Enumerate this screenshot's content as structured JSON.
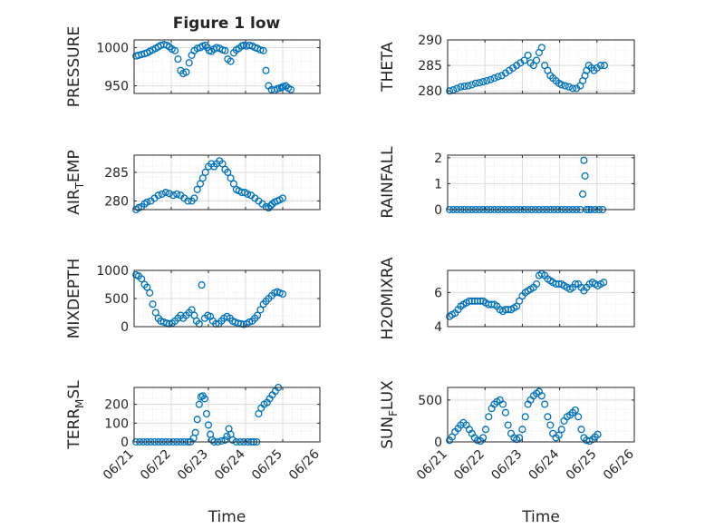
{
  "figure": {
    "title": "Figure 1 low"
  },
  "colors": {
    "marker": "#0072BD",
    "axis": "#262626",
    "grid": "#dcdcdc",
    "minorGrid": "#ebebeb",
    "background": "#ffffff"
  },
  "chart_data": [
    {
      "type": "scatter",
      "title": "Figure 1 low",
      "ylabel": "PRESSURE",
      "xlabel": "",
      "ylim": [
        940,
        1010
      ],
      "yticks": [
        950,
        1000
      ],
      "xlim": [
        0,
        5
      ],
      "xtick_labels": [],
      "grid": true,
      "legend": "none",
      "x": [
        0.05,
        0.12,
        0.2,
        0.28,
        0.35,
        0.42,
        0.5,
        0.58,
        0.65,
        0.72,
        0.8,
        0.88,
        0.95,
        1.02,
        1.1,
        1.18,
        1.25,
        1.32,
        1.4,
        1.48,
        1.55,
        1.62,
        1.7,
        1.78,
        1.85,
        1.92,
        1.97,
        2.02,
        2.08,
        2.15,
        2.22,
        2.3,
        2.38,
        2.45,
        2.52,
        2.6,
        2.68,
        2.75,
        2.82,
        2.9,
        2.95,
        3.02,
        3.1,
        3.18,
        3.25,
        3.32,
        3.4,
        3.48,
        3.55,
        3.62,
        3.7,
        3.78,
        3.85,
        3.92,
        3.97,
        4.02,
        4.08,
        4.15,
        4.22
      ],
      "y": [
        989,
        990,
        991,
        992,
        993,
        995,
        997,
        999,
        1001,
        1003,
        1004,
        1003,
        1001,
        998,
        996,
        985,
        970,
        966,
        968,
        980,
        990,
        996,
        999,
        1000,
        1002,
        1003,
        1000,
        996,
        995,
        998,
        1000,
        999,
        997,
        996,
        985,
        982,
        993,
        997,
        999,
        1002,
        1003,
        1002,
        1003,
        1002,
        1000,
        999,
        997,
        996,
        970,
        950,
        945,
        944,
        946,
        947,
        948,
        949,
        950,
        947,
        945
      ]
    },
    {
      "type": "scatter",
      "ylabel": "THETA",
      "xlabel": "",
      "ylim": [
        279.5,
        290
      ],
      "yticks": [
        280,
        285,
        290
      ],
      "xlim": [
        0,
        5
      ],
      "xtick_labels": [],
      "grid": true,
      "legend": "none",
      "x": [
        0.05,
        0.15,
        0.25,
        0.35,
        0.45,
        0.55,
        0.65,
        0.75,
        0.85,
        0.95,
        1.05,
        1.15,
        1.25,
        1.35,
        1.45,
        1.55,
        1.65,
        1.75,
        1.85,
        1.95,
        2.05,
        2.15,
        2.22,
        2.3,
        2.38,
        2.45,
        2.52,
        2.6,
        2.68,
        2.75,
        2.82,
        2.9,
        2.98,
        3.05,
        3.15,
        3.25,
        3.35,
        3.45,
        3.55,
        3.62,
        3.68,
        3.72,
        3.78,
        3.85,
        3.92,
        4.0,
        4.1,
        4.2
      ],
      "y": [
        280,
        280.2,
        280.5,
        280.8,
        280.9,
        281,
        281.2,
        281.5,
        281.6,
        281.8,
        282,
        282.2,
        282.5,
        282.8,
        283,
        283.5,
        284,
        284.5,
        285,
        285.5,
        286,
        287,
        285.5,
        285,
        286,
        287.5,
        288.5,
        285,
        284,
        283,
        282.5,
        282,
        281.5,
        281.2,
        281,
        280.8,
        280.5,
        280.5,
        281,
        282,
        283,
        284,
        285,
        284.5,
        284,
        284.5,
        285,
        285
      ]
    },
    {
      "type": "scatter",
      "ylabel": "AIR_TEMP",
      "xlabel": "",
      "ylim": [
        278.5,
        288
      ],
      "yticks": [
        280,
        285
      ],
      "xlim": [
        0,
        5
      ],
      "xtick_labels": [],
      "grid": true,
      "legend": "none",
      "x": [
        0.05,
        0.12,
        0.2,
        0.28,
        0.35,
        0.45,
        0.55,
        0.65,
        0.75,
        0.85,
        0.95,
        1.05,
        1.15,
        1.25,
        1.35,
        1.45,
        1.55,
        1.62,
        1.7,
        1.78,
        1.85,
        1.92,
        2.0,
        2.08,
        2.15,
        2.22,
        2.3,
        2.38,
        2.45,
        2.52,
        2.6,
        2.68,
        2.75,
        2.82,
        2.9,
        2.98,
        3.05,
        3.15,
        3.25,
        3.35,
        3.45,
        3.55,
        3.62,
        3.68,
        3.72,
        3.78,
        3.85,
        3.92,
        4.0
      ],
      "y": [
        278.5,
        278.8,
        279,
        279.5,
        279.8,
        280,
        280.5,
        281,
        281.2,
        281.5,
        281.3,
        281,
        281.2,
        281,
        280.5,
        280,
        280,
        280.5,
        282,
        283,
        284,
        285,
        286,
        286.5,
        286,
        286.5,
        287,
        286.5,
        285.5,
        285,
        284,
        283,
        282,
        281.8,
        281.5,
        281.5,
        281.2,
        281,
        280.5,
        280,
        279.5,
        279,
        278.8,
        279.2,
        279.5,
        279.8,
        280,
        280.2,
        280.5
      ]
    },
    {
      "type": "scatter",
      "ylabel": "RAINFALL",
      "xlabel": "",
      "ylim": [
        0,
        2.1
      ],
      "yticks": [
        0,
        1,
        2
      ],
      "xlim": [
        0,
        5
      ],
      "xtick_labels": [],
      "grid": true,
      "legend": "none",
      "x": [
        0.05,
        0.15,
        0.25,
        0.35,
        0.45,
        0.55,
        0.65,
        0.75,
        0.85,
        0.95,
        1.05,
        1.15,
        1.25,
        1.35,
        1.45,
        1.55,
        1.65,
        1.75,
        1.85,
        1.95,
        2.05,
        2.15,
        2.25,
        2.35,
        2.45,
        2.55,
        2.65,
        2.75,
        2.85,
        2.95,
        3.05,
        3.15,
        3.25,
        3.35,
        3.45,
        3.55,
        3.62,
        3.65,
        3.68,
        3.72,
        3.78,
        3.85,
        3.95,
        4.05,
        4.15
      ],
      "y": [
        0,
        0,
        0,
        0,
        0,
        0,
        0,
        0,
        0,
        0,
        0,
        0,
        0,
        0,
        0,
        0,
        0,
        0,
        0,
        0,
        0,
        0,
        0,
        0,
        0,
        0,
        0,
        0,
        0,
        0,
        0,
        0,
        0,
        0,
        0,
        0,
        0.6,
        1.9,
        1.3,
        0,
        0,
        0,
        0,
        0,
        0
      ]
    },
    {
      "type": "scatter",
      "ylabel": "MIXDEPTH",
      "xlabel": "",
      "ylim": [
        0,
        1000
      ],
      "yticks": [
        0,
        500,
        1000
      ],
      "xlim": [
        0,
        5
      ],
      "xtick_labels": [],
      "grid": true,
      "legend": "none",
      "x": [
        0.05,
        0.12,
        0.2,
        0.28,
        0.35,
        0.42,
        0.5,
        0.58,
        0.65,
        0.72,
        0.8,
        0.88,
        0.95,
        1.02,
        1.1,
        1.18,
        1.25,
        1.32,
        1.4,
        1.48,
        1.55,
        1.62,
        1.68,
        1.75,
        1.82,
        1.9,
        1.98,
        2.05,
        2.12,
        2.2,
        2.28,
        2.35,
        2.42,
        2.5,
        2.58,
        2.65,
        2.72,
        2.8,
        2.88,
        2.95,
        3.02,
        3.1,
        3.18,
        3.25,
        3.32,
        3.4,
        3.48,
        3.55,
        3.62,
        3.7,
        3.78,
        3.85,
        3.92,
        4.0
      ],
      "y": [
        920,
        900,
        850,
        750,
        700,
        600,
        400,
        250,
        150,
        100,
        80,
        60,
        50,
        60,
        100,
        150,
        200,
        150,
        200,
        250,
        300,
        200,
        100,
        50,
        740,
        150,
        200,
        180,
        100,
        50,
        50,
        100,
        150,
        180,
        150,
        100,
        80,
        60,
        50,
        40,
        50,
        80,
        100,
        150,
        200,
        300,
        400,
        450,
        500,
        550,
        600,
        620,
        600,
        580
      ]
    },
    {
      "type": "scatter",
      "ylabel": "H2OMIXRA",
      "xlabel": "",
      "ylim": [
        4,
        7.3
      ],
      "yticks": [
        4,
        6
      ],
      "xlim": [
        0,
        5
      ],
      "xtick_labels": [],
      "grid": true,
      "legend": "none",
      "x": [
        0.05,
        0.12,
        0.2,
        0.28,
        0.35,
        0.42,
        0.5,
        0.58,
        0.65,
        0.72,
        0.8,
        0.88,
        0.95,
        1.02,
        1.1,
        1.18,
        1.25,
        1.32,
        1.4,
        1.48,
        1.55,
        1.62,
        1.7,
        1.78,
        1.85,
        1.92,
        2.0,
        2.08,
        2.15,
        2.22,
        2.3,
        2.38,
        2.45,
        2.52,
        2.6,
        2.68,
        2.75,
        2.82,
        2.9,
        2.98,
        3.05,
        3.12,
        3.2,
        3.28,
        3.35,
        3.42,
        3.5,
        3.58,
        3.65,
        3.72,
        3.8,
        3.88,
        3.95,
        4.02,
        4.1,
        4.18
      ],
      "y": [
        4.6,
        4.7,
        4.8,
        5,
        5.2,
        5.3,
        5.4,
        5.5,
        5.5,
        5.5,
        5.5,
        5.5,
        5.5,
        5.4,
        5.3,
        5.3,
        5.3,
        5.2,
        5,
        4.9,
        5,
        5,
        5,
        5.1,
        5.2,
        5.5,
        5.8,
        6,
        6.1,
        6.2,
        6.3,
        6.5,
        7,
        7.1,
        7,
        6.8,
        6.7,
        6.6,
        6.5,
        6.5,
        6.5,
        6.4,
        6.3,
        6.2,
        6.3,
        6.5,
        6.5,
        6.3,
        6.1,
        6.3,
        6.5,
        6.6,
        6.5,
        6.4,
        6.5,
        6.6
      ]
    },
    {
      "type": "scatter",
      "ylabel": "TERR_MSL",
      "xlabel": "Time",
      "ylim": [
        0,
        290
      ],
      "yticks": [
        0,
        100,
        200
      ],
      "xlim": [
        0,
        5
      ],
      "xtick_labels": [
        "06/21",
        "06/22",
        "06/23",
        "06/24",
        "06/25",
        "06/26"
      ],
      "grid": true,
      "legend": "none",
      "x": [
        0.05,
        0.15,
        0.25,
        0.35,
        0.45,
        0.55,
        0.65,
        0.75,
        0.85,
        0.95,
        1.05,
        1.15,
        1.25,
        1.35,
        1.45,
        1.52,
        1.6,
        1.65,
        1.7,
        1.75,
        1.8,
        1.85,
        1.9,
        1.95,
        2.0,
        2.05,
        2.1,
        2.15,
        2.25,
        2.35,
        2.45,
        2.5,
        2.55,
        2.6,
        2.65,
        2.75,
        2.85,
        2.95,
        3.05,
        3.15,
        3.22,
        3.3,
        3.35,
        3.42,
        3.5,
        3.58,
        3.65,
        3.72,
        3.8,
        3.88
      ],
      "y": [
        0,
        0,
        0,
        0,
        0,
        0,
        0,
        0,
        0,
        0,
        0,
        0,
        0,
        0,
        0,
        0,
        20,
        50,
        120,
        200,
        240,
        245,
        230,
        150,
        90,
        40,
        10,
        0,
        0,
        5,
        10,
        30,
        70,
        40,
        10,
        0,
        0,
        0,
        0,
        0,
        0,
        0,
        150,
        180,
        200,
        210,
        230,
        250,
        270,
        290
      ]
    },
    {
      "type": "scatter",
      "ylabel": "SUN_FLUX",
      "xlabel": "Time",
      "ylim": [
        0,
        650
      ],
      "yticks": [
        0,
        500
      ],
      "xlim": [
        0,
        5
      ],
      "xtick_labels": [
        "06/21",
        "06/22",
        "06/23",
        "06/24",
        "06/25",
        "06/26"
      ],
      "grid": true,
      "legend": "none",
      "x": [
        0.05,
        0.12,
        0.2,
        0.28,
        0.35,
        0.42,
        0.5,
        0.58,
        0.65,
        0.72,
        0.8,
        0.88,
        0.95,
        1.02,
        1.1,
        1.18,
        1.25,
        1.32,
        1.4,
        1.48,
        1.55,
        1.62,
        1.7,
        1.78,
        1.85,
        1.92,
        2.0,
        2.08,
        2.15,
        2.22,
        2.3,
        2.38,
        2.45,
        2.52,
        2.6,
        2.68,
        2.75,
        2.82,
        2.9,
        2.98,
        3.05,
        3.12,
        3.2,
        3.28,
        3.35,
        3.42,
        3.5,
        3.58,
        3.65,
        3.72,
        3.8,
        3.88,
        3.95,
        4.02
      ],
      "y": [
        20,
        60,
        120,
        160,
        200,
        230,
        200,
        150,
        100,
        50,
        20,
        10,
        50,
        150,
        300,
        400,
        450,
        480,
        500,
        450,
        350,
        200,
        100,
        50,
        30,
        50,
        150,
        300,
        450,
        500,
        550,
        580,
        600,
        550,
        450,
        300,
        200,
        100,
        50,
        80,
        150,
        250,
        300,
        320,
        350,
        380,
        300,
        150,
        50,
        20,
        10,
        30,
        60,
        90
      ]
    }
  ]
}
